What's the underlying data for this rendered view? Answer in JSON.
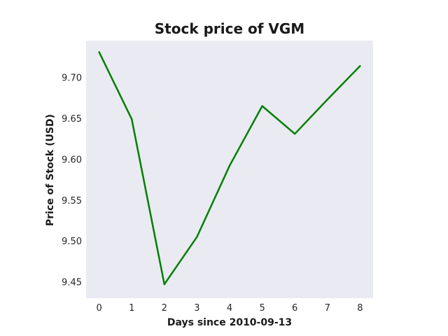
{
  "chart_data": {
    "type": "line",
    "title": "Stock price of VGM",
    "xlabel": "Days since 2010-09-13",
    "ylabel": "Price of Stock (USD)",
    "x": [
      0,
      1,
      2,
      3,
      4,
      5,
      6,
      7,
      8
    ],
    "series": [
      {
        "values": [
          9.731,
          9.649,
          9.447,
          9.505,
          9.592,
          9.665,
          9.631,
          9.673,
          9.714
        ]
      }
    ],
    "xticks": [
      "0",
      "1",
      "2",
      "3",
      "4",
      "5",
      "6",
      "7",
      "8"
    ],
    "yticks": [
      "9.45",
      "9.50",
      "9.55",
      "9.60",
      "9.65",
      "9.70"
    ],
    "xlim": [
      -0.4,
      8.4
    ],
    "ylim": [
      9.43,
      9.745
    ],
    "grid": false,
    "colors": {
      "plot_background": "#eaeaf2",
      "line": "#008000"
    }
  }
}
